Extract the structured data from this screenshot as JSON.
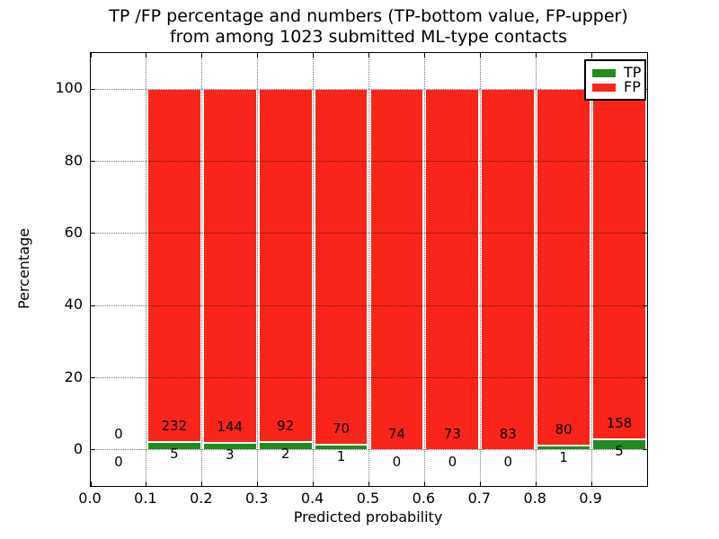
{
  "chart_data": {
    "type": "bar",
    "stacked": true,
    "title_line1": "TP /FP percentage and numbers (TP-bottom value, FP-upper)",
    "title_line2": "from among 1023 submitted ML-type contacts",
    "xlabel": "Predicted probability",
    "ylabel": "Percentage",
    "xlim": [
      0,
      1.0
    ],
    "ylim": [
      -10,
      110
    ],
    "x_tick_labels": [
      "0.0",
      "0.1",
      "0.2",
      "0.3",
      "0.4",
      "0.5",
      "0.6",
      "0.7",
      "0.8",
      "0.9"
    ],
    "y_tick_labels": [
      "0",
      "20",
      "40",
      "60",
      "80",
      "100"
    ],
    "y_tick_values": [
      0,
      20,
      40,
      60,
      80,
      100
    ],
    "grid": "dotted",
    "legend_position": "upper right",
    "legend": [
      {
        "label": "TP",
        "color": "#1e8c1e"
      },
      {
        "label": "FP",
        "color": "#f9241a"
      }
    ],
    "bins": [
      {
        "range": [
          0.0,
          0.1
        ],
        "tp": 0,
        "fp": 0
      },
      {
        "range": [
          0.1,
          0.2
        ],
        "tp": 5,
        "fp": 232
      },
      {
        "range": [
          0.2,
          0.3
        ],
        "tp": 3,
        "fp": 144
      },
      {
        "range": [
          0.3,
          0.4
        ],
        "tp": 2,
        "fp": 92
      },
      {
        "range": [
          0.4,
          0.5
        ],
        "tp": 1,
        "fp": 70
      },
      {
        "range": [
          0.5,
          0.6
        ],
        "tp": 0,
        "fp": 74
      },
      {
        "range": [
          0.6,
          0.7
        ],
        "tp": 0,
        "fp": 73
      },
      {
        "range": [
          0.7,
          0.8
        ],
        "tp": 0,
        "fp": 83
      },
      {
        "range": [
          0.8,
          0.9
        ],
        "tp": 1,
        "fp": 80
      },
      {
        "range": [
          0.9,
          1.0
        ],
        "tp": 5,
        "fp": 158
      }
    ]
  },
  "colors": {
    "tp_green": "#1e8c1e",
    "fp_red": "#f9241a",
    "background": "#ffffff",
    "axis": "#000000",
    "grid": "#555555"
  }
}
